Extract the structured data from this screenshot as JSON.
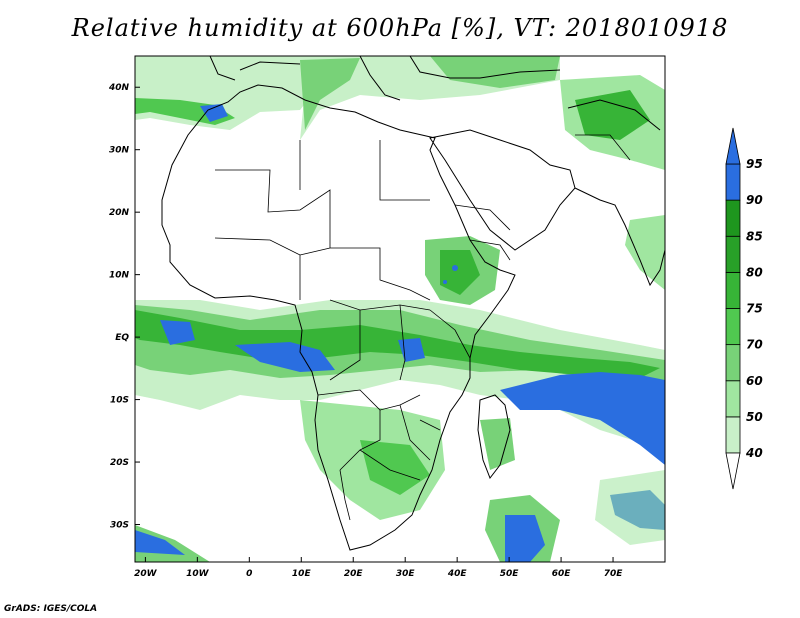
{
  "title": "Relative humidity at 600hPa [%], VT: 2018010918",
  "credit": "GrADS: IGES/COLA",
  "map": {
    "lon_range": [
      -22,
      80
    ],
    "lat_range": [
      -36,
      45
    ],
    "lon_ticks": [
      {
        "value": -20,
        "label": "20W"
      },
      {
        "value": -10,
        "label": "10W"
      },
      {
        "value": 0,
        "label": "0"
      },
      {
        "value": 10,
        "label": "10E"
      },
      {
        "value": 20,
        "label": "20E"
      },
      {
        "value": 30,
        "label": "30E"
      },
      {
        "value": 40,
        "label": "40E"
      },
      {
        "value": 50,
        "label": "50E"
      },
      {
        "value": 60,
        "label": "60E"
      },
      {
        "value": 70,
        "label": "70E"
      }
    ],
    "lat_ticks": [
      {
        "value": 40,
        "label": "40N"
      },
      {
        "value": 30,
        "label": "30N"
      },
      {
        "value": 20,
        "label": "20N"
      },
      {
        "value": 10,
        "label": "10N"
      },
      {
        "value": 0,
        "label": "EQ"
      },
      {
        "value": -10,
        "label": "10S"
      },
      {
        "value": -20,
        "label": "20S"
      },
      {
        "value": -30,
        "label": "30S"
      }
    ]
  },
  "colorbar": {
    "levels": [
      "40",
      "50",
      "60",
      "70",
      "75",
      "80",
      "85",
      "90",
      "95"
    ],
    "colors": [
      "#e6fae6",
      "#c8f0c8",
      "#a0e6a0",
      "#78d278",
      "#50c850",
      "#37b437",
      "#28a028",
      "#1e961e",
      "#2a6ee0"
    ]
  }
}
